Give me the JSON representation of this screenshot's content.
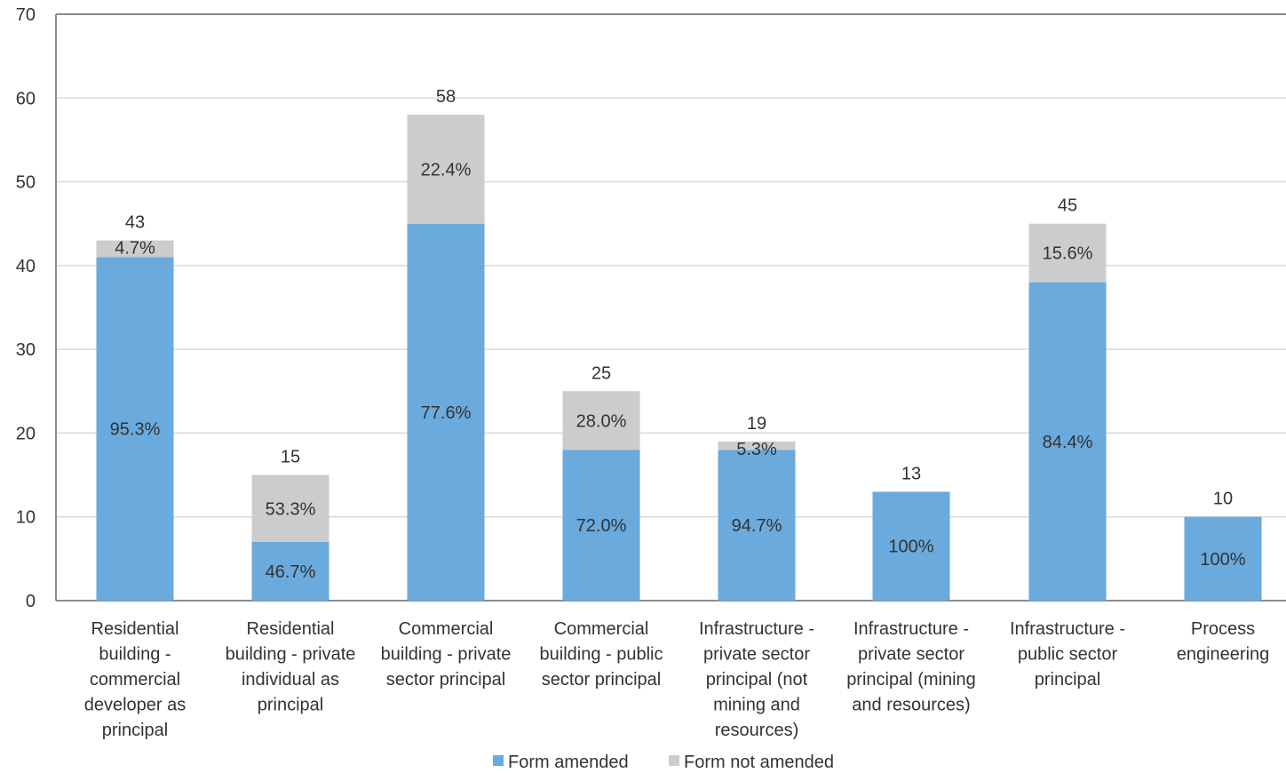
{
  "chart_data": {
    "type": "bar",
    "stacked": true,
    "title": "",
    "xlabel": "",
    "ylabel": "",
    "ylim": [
      0,
      70
    ],
    "yticks": [
      0,
      10,
      20,
      30,
      40,
      50,
      60,
      70
    ],
    "grid": true,
    "legend_position": "bottom",
    "categories": [
      [
        "Residential",
        "building -",
        "commercial",
        "developer as",
        "principal"
      ],
      [
        "Residential",
        "building - private",
        "individual as",
        "principal"
      ],
      [
        "Commercial",
        "building - private",
        "sector principal"
      ],
      [
        "Commercial",
        "building - public",
        "sector principal"
      ],
      [
        "Infrastructure -",
        "private sector",
        "principal (not",
        "mining and",
        "resources)"
      ],
      [
        "Infrastructure -",
        "private sector",
        "principal (mining",
        "and resources)"
      ],
      [
        "Infrastructure -",
        "public sector",
        "principal"
      ],
      [
        "Process",
        "engineering"
      ]
    ],
    "totals": [
      "43",
      "15",
      "58",
      "25",
      "19",
      "13",
      "45",
      "10"
    ],
    "series": [
      {
        "name": "Form amended",
        "color": "#6aaadc",
        "values": [
          41,
          7,
          45,
          18,
          18,
          13,
          38,
          10
        ],
        "labels": [
          "95.3%",
          "46.7%",
          "77.6%",
          "72.0%",
          "94.7%",
          "100%",
          "84.4%",
          "100%"
        ]
      },
      {
        "name": "Form not amended",
        "color": "#cccccc",
        "values": [
          2,
          8,
          13,
          7,
          1,
          0,
          7,
          0
        ],
        "labels": [
          "4.7%",
          "53.3%",
          "22.4%",
          "28.0%",
          "5.3%",
          "",
          "15.6%",
          ""
        ]
      }
    ]
  }
}
